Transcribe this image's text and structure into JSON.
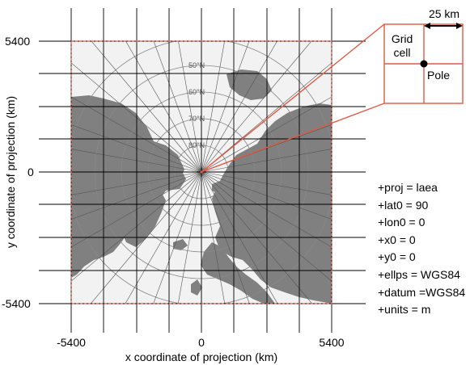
{
  "axes": {
    "xlabel": "x coordinate of projection (km)",
    "ylabel": "y coordinate of projection (km)",
    "xticks": [
      "-5400",
      "0",
      "5400"
    ],
    "yticks": [
      "5400",
      "0",
      "-5400"
    ],
    "xlim": [
      -5400,
      5400
    ],
    "ylim": [
      -5400,
      5400
    ]
  },
  "map": {
    "projection_center": "North Pole",
    "latitude_labels": [
      "50°N",
      "60°N",
      "70°N",
      "80°N"
    ],
    "ocean_color": "#f2f2f2",
    "land_color": "#808080",
    "grid_line_color": "#000000",
    "boundary_color": "#e05a45",
    "inset_color": "#e05a45"
  },
  "inset": {
    "scale_label": "25 km",
    "cell_label": "Grid\ncell",
    "pole_label": "Pole"
  },
  "proj_params": [
    "+proj = laea",
    "+lat0 = 90",
    "+lon0 = 0",
    "+x0 = 0",
    "+y0 = 0",
    "+ellps = WGS84",
    "+datum =WGS84",
    "+units = m"
  ]
}
